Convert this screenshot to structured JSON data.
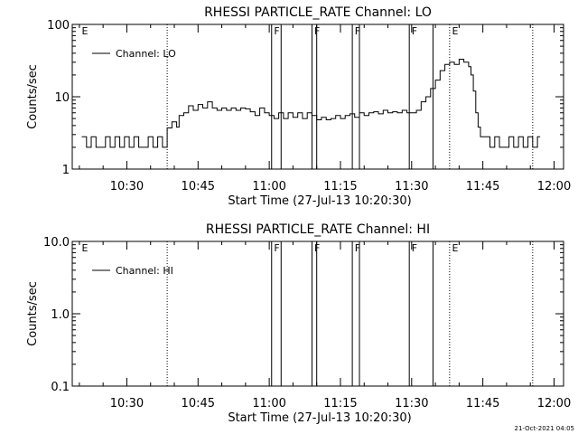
{
  "stamp": "21-Oct-2021 04:05",
  "chart_data": [
    {
      "type": "line",
      "title": "RHESSI PARTICLE_RATE Channel: LO",
      "xlabel": "Start Time (27-Jul-13 10:20:30)",
      "ylabel": "Counts/sec",
      "yscale": "log",
      "ylim": [
        1,
        100
      ],
      "y_ticks": [
        "1",
        "10",
        "100"
      ],
      "x_ticks": [
        "10:30",
        "10:45",
        "11:00",
        "11:15",
        "11:30",
        "11:45",
        "12:00"
      ],
      "legend": "Channel: LO",
      "legend_position": "top-left",
      "flags": [
        {
          "time": "10:20:30",
          "label": "E"
        },
        {
          "time": "11:01:00",
          "label": "F"
        },
        {
          "time": "11:09:30",
          "label": "F"
        },
        {
          "time": "11:18:00",
          "label": "F"
        },
        {
          "time": "11:30:00",
          "label": "F"
        },
        {
          "time": "11:38:30",
          "label": "E"
        }
      ],
      "solid_lines": [
        "11:00:30",
        "11:02:30",
        "11:09:00",
        "11:10:00",
        "11:17:30",
        "11:19:00",
        "11:29:30",
        "11:34:30"
      ],
      "dotted_lines": [
        "10:38:30",
        "11:38:00",
        "11:55:30"
      ],
      "series": [
        {
          "name": "Channel: LO",
          "points": [
            [
              "10:20:30",
              2.8
            ],
            [
              "10:21:30",
              2.0
            ],
            [
              "10:22:30",
              2.8
            ],
            [
              "10:23:30",
              2.0
            ],
            [
              "10:24:30",
              2.0
            ],
            [
              "10:25:30",
              2.8
            ],
            [
              "10:26:30",
              2.0
            ],
            [
              "10:27:30",
              2.8
            ],
            [
              "10:28:30",
              2.0
            ],
            [
              "10:29:30",
              2.8
            ],
            [
              "10:30:30",
              2.0
            ],
            [
              "10:31:30",
              2.8
            ],
            [
              "10:32:30",
              2.0
            ],
            [
              "10:33:30",
              2.0
            ],
            [
              "10:34:30",
              2.8
            ],
            [
              "10:35:30",
              2.0
            ],
            [
              "10:36:30",
              2.8
            ],
            [
              "10:37:30",
              2.0
            ],
            [
              "10:38:29",
              2.0
            ],
            [
              "10:38:30",
              3.7
            ],
            [
              "10:39:30",
              4.5
            ],
            [
              "10:40:30",
              3.8
            ],
            [
              "10:41:00",
              5.5
            ],
            [
              "10:42:00",
              6.0
            ],
            [
              "10:43:00",
              7.5
            ],
            [
              "10:44:00",
              6.5
            ],
            [
              "10:45:00",
              7.8
            ],
            [
              "10:46:00",
              7.0
            ],
            [
              "10:47:00",
              8.5
            ],
            [
              "10:48:00",
              7.0
            ],
            [
              "10:49:00",
              6.5
            ],
            [
              "10:50:00",
              7.0
            ],
            [
              "10:51:00",
              6.5
            ],
            [
              "10:52:00",
              7.0
            ],
            [
              "10:53:00",
              6.5
            ],
            [
              "10:54:00",
              7.0
            ],
            [
              "10:55:00",
              6.8
            ],
            [
              "10:56:00",
              6.2
            ],
            [
              "10:57:00",
              5.5
            ],
            [
              "10:58:00",
              7.0
            ],
            [
              "10:59:00",
              6.0
            ],
            [
              "11:00:00",
              5.5
            ],
            [
              "11:01:00",
              5.0
            ],
            [
              "11:02:00",
              6.0
            ],
            [
              "11:03:00",
              5.0
            ],
            [
              "11:04:00",
              6.0
            ],
            [
              "11:05:00",
              5.2
            ],
            [
              "11:06:00",
              6.0
            ],
            [
              "11:07:00",
              5.0
            ],
            [
              "11:08:00",
              6.0
            ],
            [
              "11:09:00",
              5.5
            ],
            [
              "11:10:00",
              4.8
            ],
            [
              "11:11:00",
              5.2
            ],
            [
              "11:12:00",
              4.8
            ],
            [
              "11:13:00",
              5.0
            ],
            [
              "11:14:00",
              5.5
            ],
            [
              "11:15:00",
              5.0
            ],
            [
              "11:16:00",
              5.5
            ],
            [
              "11:17:00",
              5.8
            ],
            [
              "11:18:00",
              5.2
            ],
            [
              "11:19:00",
              6.0
            ],
            [
              "11:20:00",
              5.5
            ],
            [
              "11:21:00",
              6.0
            ],
            [
              "11:22:00",
              6.2
            ],
            [
              "11:23:00",
              5.8
            ],
            [
              "11:24:00",
              6.5
            ],
            [
              "11:25:00",
              6.0
            ],
            [
              "11:26:00",
              6.2
            ],
            [
              "11:27:00",
              6.0
            ],
            [
              "11:28:00",
              6.5
            ],
            [
              "11:29:00",
              6.0
            ],
            [
              "11:30:00",
              6.0
            ],
            [
              "11:31:00",
              6.5
            ],
            [
              "11:32:00",
              8.5
            ],
            [
              "11:33:00",
              10.0
            ],
            [
              "11:34:00",
              13.0
            ],
            [
              "11:35:00",
              17.0
            ],
            [
              "11:36:00",
              23.0
            ],
            [
              "11:37:00",
              28.0
            ],
            [
              "11:38:00",
              30.0
            ],
            [
              "11:39:00",
              28.0
            ],
            [
              "11:40:00",
              33.0
            ],
            [
              "11:41:00",
              30.0
            ],
            [
              "11:42:00",
              26.0
            ],
            [
              "11:42:30",
              20.0
            ],
            [
              "11:43:00",
              12.0
            ],
            [
              "11:43:30",
              6.0
            ],
            [
              "11:44:00",
              3.8
            ],
            [
              "11:44:30",
              2.8
            ],
            [
              "11:45:30",
              2.8
            ],
            [
              "11:46:30",
              2.0
            ],
            [
              "11:47:30",
              2.8
            ],
            [
              "11:48:30",
              2.0
            ],
            [
              "11:49:30",
              2.0
            ],
            [
              "11:50:30",
              2.8
            ],
            [
              "11:51:30",
              2.0
            ],
            [
              "11:52:30",
              2.8
            ],
            [
              "11:53:30",
              2.0
            ],
            [
              "11:54:30",
              2.8
            ],
            [
              "11:55:30",
              2.0
            ],
            [
              "11:56:30",
              2.8
            ]
          ]
        }
      ]
    },
    {
      "type": "line",
      "title": "RHESSI PARTICLE_RATE Channel: HI",
      "xlabel": "Start Time (27-Jul-13 10:20:30)",
      "ylabel": "Counts/sec",
      "yscale": "log",
      "ylim": [
        0.1,
        10.0
      ],
      "y_ticks": [
        "0.1",
        "1.0",
        "10.0"
      ],
      "x_ticks": [
        "10:30",
        "10:45",
        "11:00",
        "11:15",
        "11:30",
        "11:45",
        "12:00"
      ],
      "legend": "Channel: HI",
      "legend_position": "top-left",
      "flags": [
        {
          "time": "10:20:30",
          "label": "E"
        },
        {
          "time": "11:01:00",
          "label": "F"
        },
        {
          "time": "11:09:30",
          "label": "F"
        },
        {
          "time": "11:18:00",
          "label": "F"
        },
        {
          "time": "11:30:00",
          "label": "F"
        },
        {
          "time": "11:38:30",
          "label": "E"
        }
      ],
      "solid_lines": [
        "11:00:30",
        "11:02:30",
        "11:09:00",
        "11:10:00",
        "11:17:30",
        "11:19:00",
        "11:29:30",
        "11:34:30"
      ],
      "dotted_lines": [
        "10:38:30",
        "11:38:00",
        "11:55:30"
      ],
      "series": [
        {
          "name": "Channel: HI",
          "points": []
        }
      ]
    }
  ]
}
